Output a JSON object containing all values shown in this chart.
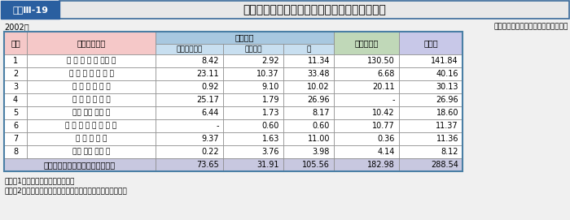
{
  "title": "中央アジア・コーカサス地域における援助実績",
  "title_label": "図表Ⅲ-19",
  "year": "2002年",
  "unit_note": "（支出純額ベース、単位：百万ドル）",
  "note1": "注：（1）地域区分は外務省分類。",
  "note2": "　　（2）四捨五入の関係上、合計が一致しないことがある。",
  "rows": [
    {
      "rank": "1",
      "name": "ア ゼ ル バ イ ジャ ン",
      "musan": "8.42",
      "gijutsu": "2.92",
      "kei": "11.34",
      "seifu": "130.50",
      "gokei": "141.84"
    },
    {
      "rank": "2",
      "name": "ウ ズ ベ キ ス タ ン",
      "musan": "23.11",
      "gijutsu": "10.37",
      "kei": "33.48",
      "seifu": "6.68",
      "gokei": "40.16"
    },
    {
      "rank": "3",
      "name": "カ ザ フ ス タ ン",
      "musan": "0.92",
      "gijutsu": "9.10",
      "kei": "10.02",
      "seifu": "20.11",
      "gokei": "30.13"
    },
    {
      "rank": "4",
      "name": "タ ジ キ ス タ ン",
      "musan": "25.17",
      "gijutsu": "1.79",
      "kei": "26.96",
      "seifu": "-",
      "gokei": "26.96"
    },
    {
      "rank": "5",
      "name": "グ　 ル　 ジ　 ア",
      "musan": "6.44",
      "gijutsu": "1.73",
      "kei": "8.17",
      "seifu": "10.42",
      "gokei": "18.60"
    },
    {
      "rank": "6",
      "name": "ト ル ク メ ニ ス タ ン",
      "musan": "-",
      "gijutsu": "0.60",
      "kei": "0.60",
      "seifu": "10.77",
      "gokei": "11.37"
    },
    {
      "rank": "7",
      "name": "ア ル メ ニ ア",
      "musan": "9.37",
      "gijutsu": "1.63",
      "kei": "11.00",
      "seifu": "0.36",
      "gokei": "11.36"
    },
    {
      "rank": "8",
      "name": "キ　 ル　 ギ　 ス",
      "musan": "0.22",
      "gijutsu": "3.76",
      "kei": "3.98",
      "seifu": "4.14",
      "gokei": "8.12"
    }
  ],
  "total_row": {
    "name": "中央アジア・コーカサス地域合計",
    "musan": "73.65",
    "gijutsu": "31.91",
    "kei": "105.56",
    "seifu": "182.98",
    "gokei": "288.54"
  },
  "c_fig_bg": "#f0f0f0",
  "c_title_label_bg": "#2a5fa0",
  "c_title_label_text": "#ffffff",
  "c_title_bg": "#e8e8e8",
  "c_title_border": "#3a6a9a",
  "c_pink": "#f5c8c8",
  "c_blue_header": "#a8c8e0",
  "c_blue_sub": "#c8dff0",
  "c_green": "#c0d8b8",
  "c_lavender": "#c8c8e8",
  "c_white": "#ffffff",
  "c_total_bg": "#c8c8e0",
  "c_border": "#888888",
  "c_outer": "#4a7fa5"
}
